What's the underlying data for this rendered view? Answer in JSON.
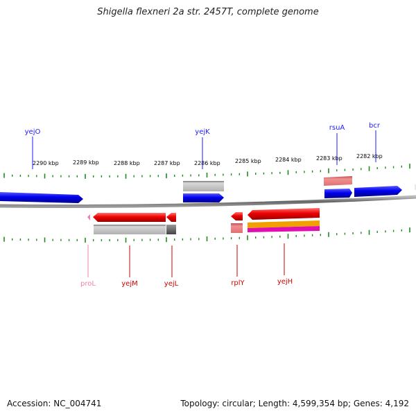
{
  "title": "Shigella flexneri 2a str. 2457T, complete genome",
  "footer": {
    "accession": "Accession: NC_004741",
    "summary": "Topology: circular; Length: 4,599,354 bp; Genes: 4,192"
  },
  "ruler": {
    "labels": [
      "2290 kbp",
      "2289 kbp",
      "2288 kbp",
      "2287 kbp",
      "2286 kbp",
      "2285 kbp",
      "2284 kbp",
      "2283 kbp",
      "2282 kbp"
    ],
    "tick_color": "#1e8a1e"
  },
  "backbone_color": "#808080",
  "genes_top": [
    {
      "name": "yejO",
      "color": "#1a1aff"
    },
    {
      "name": "yejK",
      "color": "#1a1aff"
    },
    {
      "name": "rsuA",
      "color": "#1a1aff"
    },
    {
      "name": "bcr",
      "color": "#1a1aff"
    }
  ],
  "genes_bottom": [
    {
      "name": "proL",
      "color": "#f080b0"
    },
    {
      "name": "yejM",
      "color": "#cc0000"
    },
    {
      "name": "yejL",
      "color": "#cc0000"
    },
    {
      "name": "rplY",
      "color": "#cc0000"
    },
    {
      "name": "yejH",
      "color": "#cc0000"
    }
  ]
}
